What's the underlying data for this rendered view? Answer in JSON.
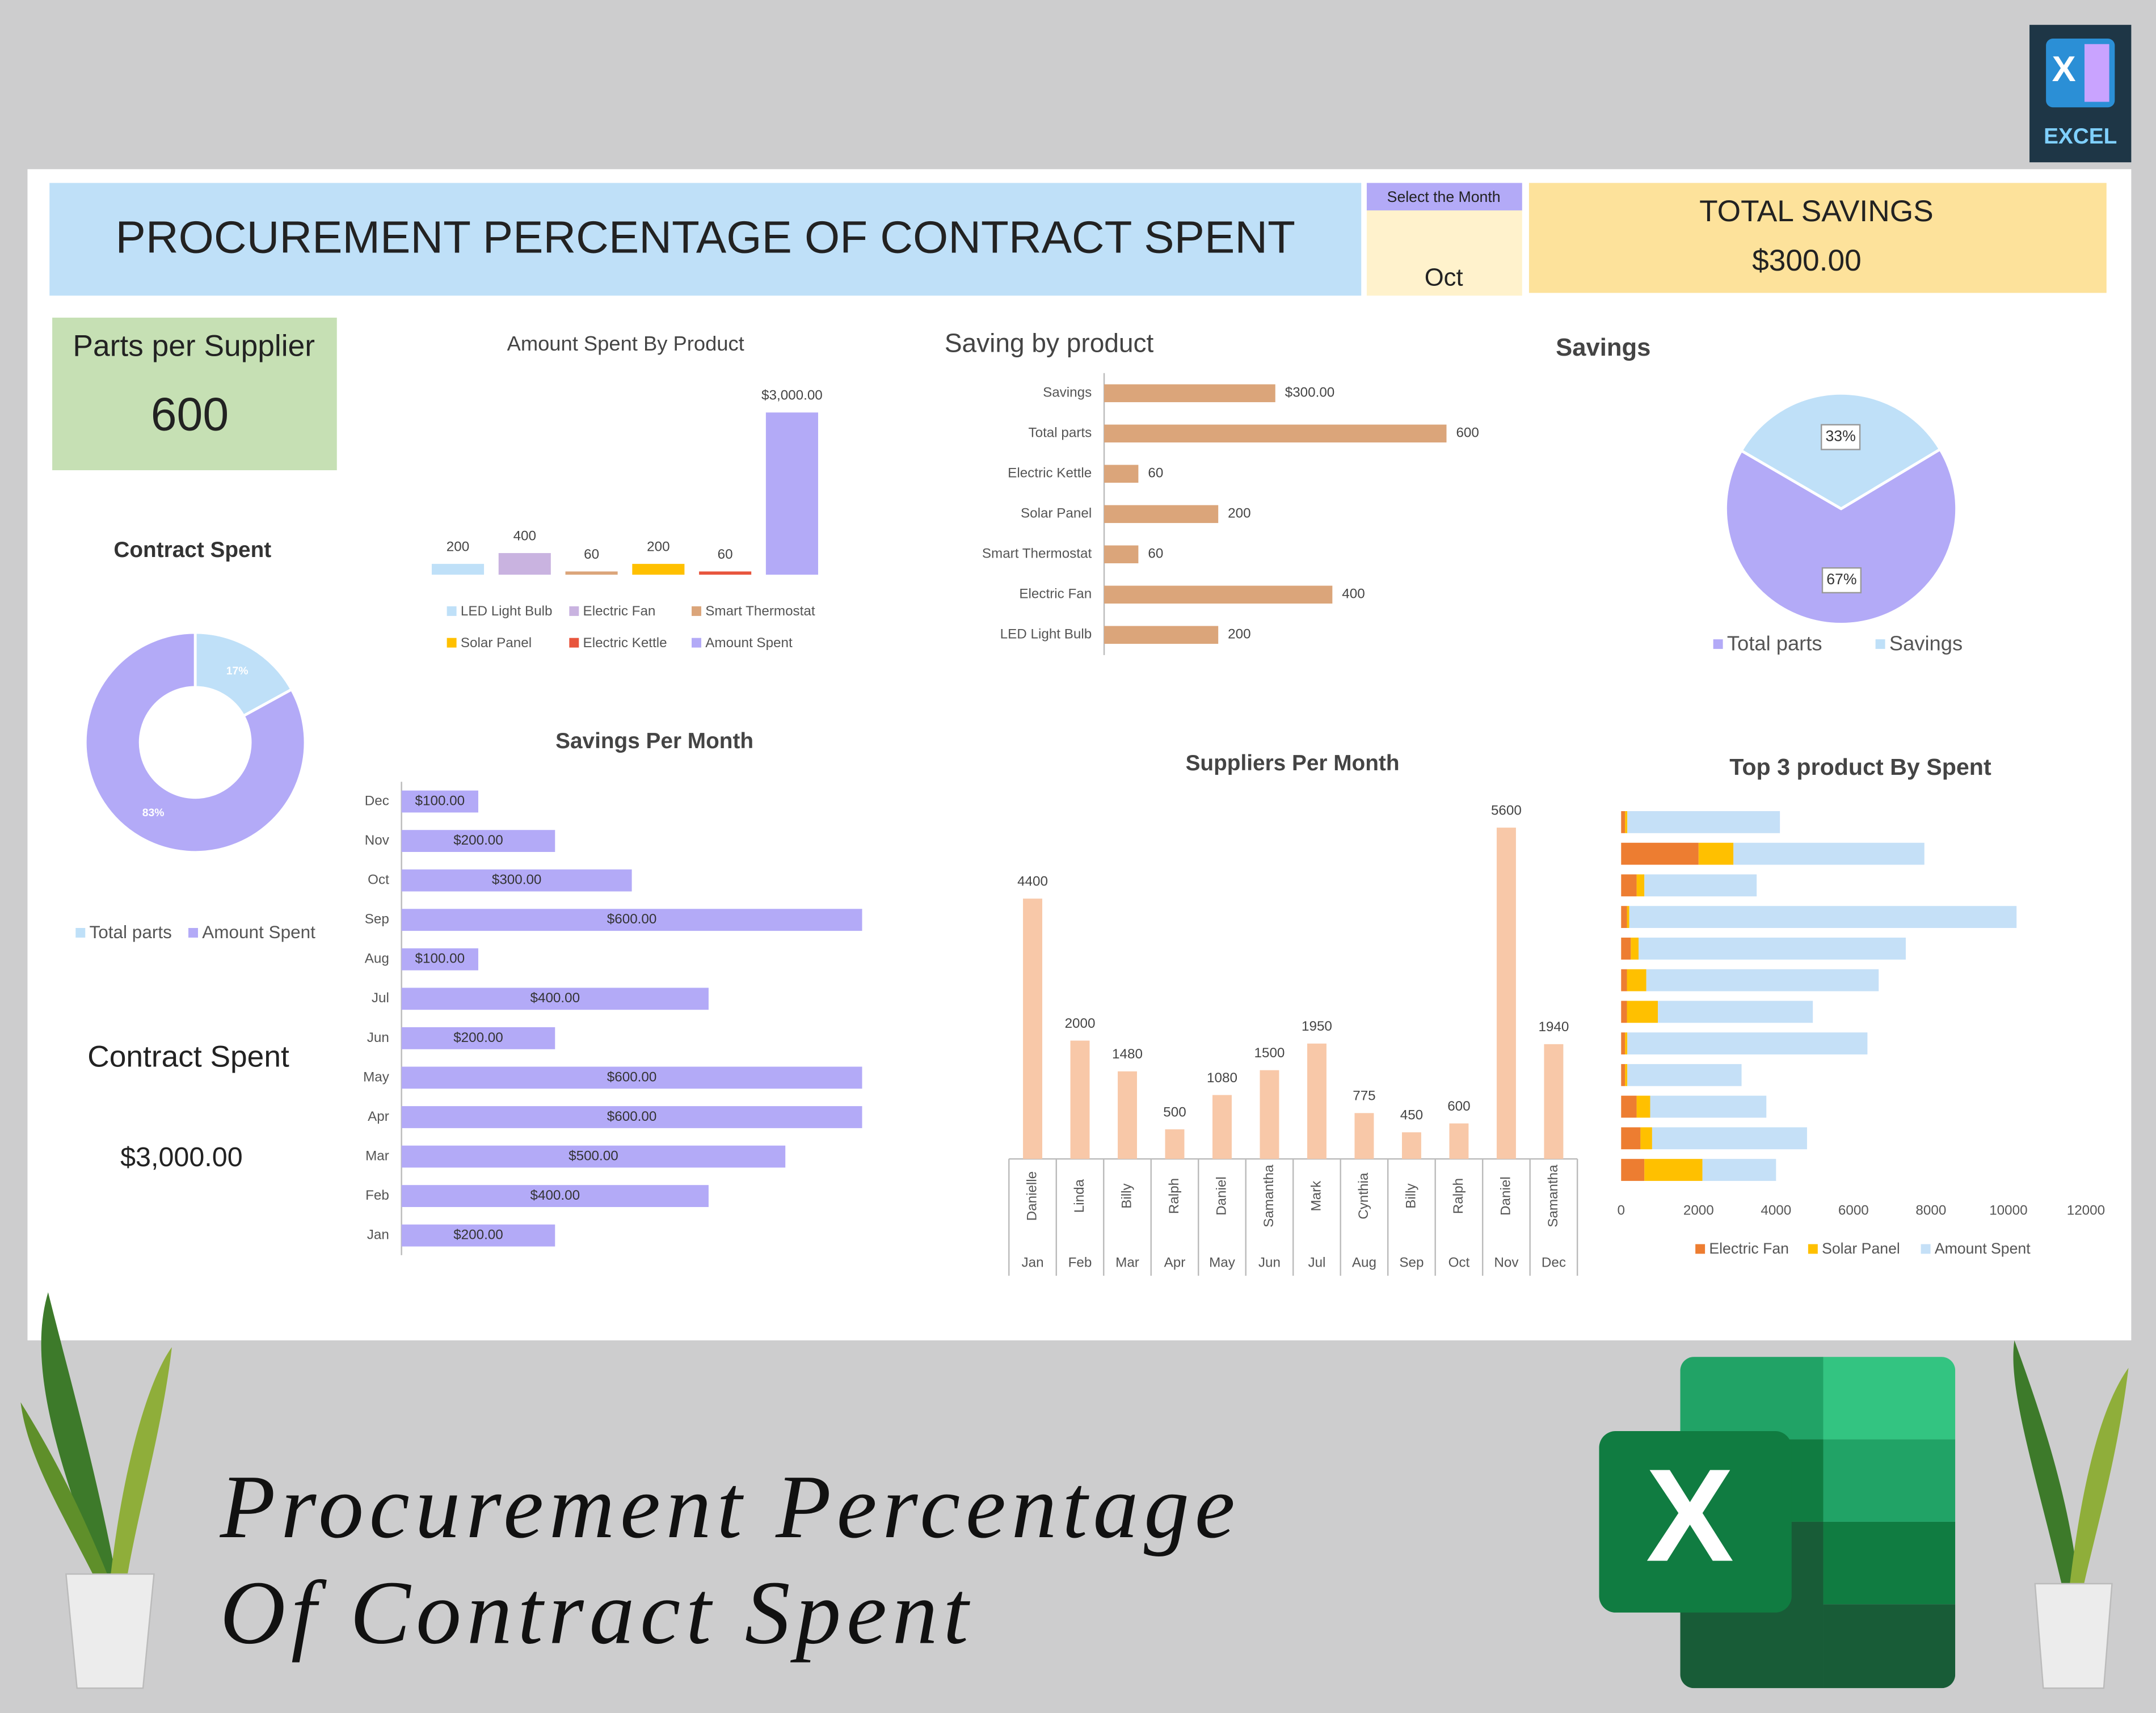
{
  "header": {
    "title": "PROCUREMENT PERCENTAGE OF CONTRACT SPENT",
    "select_label": "Select the Month",
    "selected_month": "Oct",
    "total_savings_label": "TOTAL SAVINGS",
    "total_savings": "$300.00",
    "parts_label": "Parts per Supplier",
    "parts_value": "600",
    "contract_spent_label": "Contract Spent",
    "contract_spent_value": "$3,000.00",
    "badge": "EXCEL",
    "logo_letter": "X",
    "banner_lines": [
      "Procurement Percentage",
      "Of Contract Spent"
    ]
  },
  "chart_data": [
    {
      "type": "bar",
      "title": "Amount Spent By Product",
      "series": [
        {
          "name": "LED Light Bulb",
          "color": "#bfe0f8",
          "values": [
            200
          ]
        },
        {
          "name": "Electric Fan",
          "color": "#c9b3e0",
          "values": [
            400
          ]
        },
        {
          "name": "Smart Thermostat",
          "color": "#dba57a",
          "values": [
            60
          ]
        },
        {
          "name": "Solar Panel",
          "color": "#ffc000",
          "values": [
            200
          ]
        },
        {
          "name": "Electric Kettle",
          "color": "#e8553d",
          "values": [
            60
          ]
        },
        {
          "name": "Amount Spent",
          "color": "#b3aaf7",
          "values": [
            3000
          ],
          "value_labels": [
            "$3,000.00"
          ]
        }
      ]
    },
    {
      "type": "hbar",
      "title": "Saving by product",
      "categories": [
        "Savings",
        "Total parts",
        "Electric Kettle",
        "Solar Panel",
        "Smart Thermostat",
        "Electric Fan",
        "LED Light Bulb"
      ],
      "values": [
        300,
        600,
        60,
        200,
        60,
        400,
        200
      ],
      "value_labels": [
        "$300.00",
        "600",
        "60",
        "200",
        "60",
        "400",
        "200"
      ],
      "color": "#dba57a"
    },
    {
      "type": "pie",
      "title": "Savings",
      "categories": [
        "Total parts",
        "Savings"
      ],
      "values": [
        67,
        33
      ],
      "value_labels": [
        "67%",
        "33%"
      ],
      "colors": [
        "#b3aaf7",
        "#bfe0f8"
      ]
    },
    {
      "type": "donut",
      "title": "Contract Spent",
      "categories": [
        "Total parts",
        "Amount Spent"
      ],
      "values": [
        17,
        83
      ],
      "value_labels": [
        "17%",
        "83%"
      ],
      "colors": [
        "#bfe0f8",
        "#b3aaf7"
      ]
    },
    {
      "type": "hbar",
      "title": "Savings Per Month",
      "categories": [
        "Dec",
        "Nov",
        "Oct",
        "Sep",
        "Aug",
        "Jul",
        "Jun",
        "May",
        "Apr",
        "Mar",
        "Feb",
        "Jan"
      ],
      "values": [
        100,
        200,
        300,
        600,
        100,
        400,
        200,
        600,
        600,
        500,
        400,
        200
      ],
      "value_labels": [
        "$100.00",
        "$200.00",
        "$300.00",
        "$600.00",
        "$100.00",
        "$400.00",
        "$200.00",
        "$600.00",
        "$600.00",
        "$500.00",
        "$400.00",
        "$200.00"
      ],
      "color": "#b3aaf7"
    },
    {
      "type": "bar",
      "title": "Suppliers Per Month",
      "categories": [
        "Danielle",
        "Linda",
        "Billy",
        "Ralph",
        "Daniel",
        "Samantha",
        "Mark",
        "Cynthia",
        "Billy",
        "Ralph",
        "Daniel",
        "Samantha"
      ],
      "groups": [
        "Jan",
        "Feb",
        "Mar",
        "Apr",
        "May",
        "Jun",
        "Jul",
        "Aug",
        "Sep",
        "Oct",
        "Nov",
        "Dec"
      ],
      "values": [
        4400,
        2000,
        1480,
        500,
        1080,
        1500,
        1950,
        775,
        450,
        600,
        5600,
        1940
      ],
      "color": "#f8c8a8"
    },
    {
      "type": "stacked-hbar",
      "title": "Top 3 product By Spent",
      "series": [
        {
          "name": "Electric Fan",
          "color": "#ed7d31",
          "values": [
            100,
            2000,
            400,
            150,
            250,
            150,
            150,
            100,
            100,
            400,
            500,
            600
          ]
        },
        {
          "name": "Solar Panel",
          "color": "#ffc000",
          "values": [
            60,
            900,
            200,
            60,
            200,
            500,
            800,
            60,
            60,
            350,
            300,
            1500
          ]
        },
        {
          "name": "Amount Spent",
          "color": "#c5e0f7",
          "values": [
            3940,
            4930,
            2900,
            10000,
            6900,
            6000,
            4000,
            6200,
            2950,
            3000,
            4000,
            1900
          ]
        }
      ],
      "xlim": [
        0,
        12000
      ],
      "xticks": [
        0,
        2000,
        4000,
        6000,
        8000,
        10000,
        12000
      ]
    }
  ]
}
